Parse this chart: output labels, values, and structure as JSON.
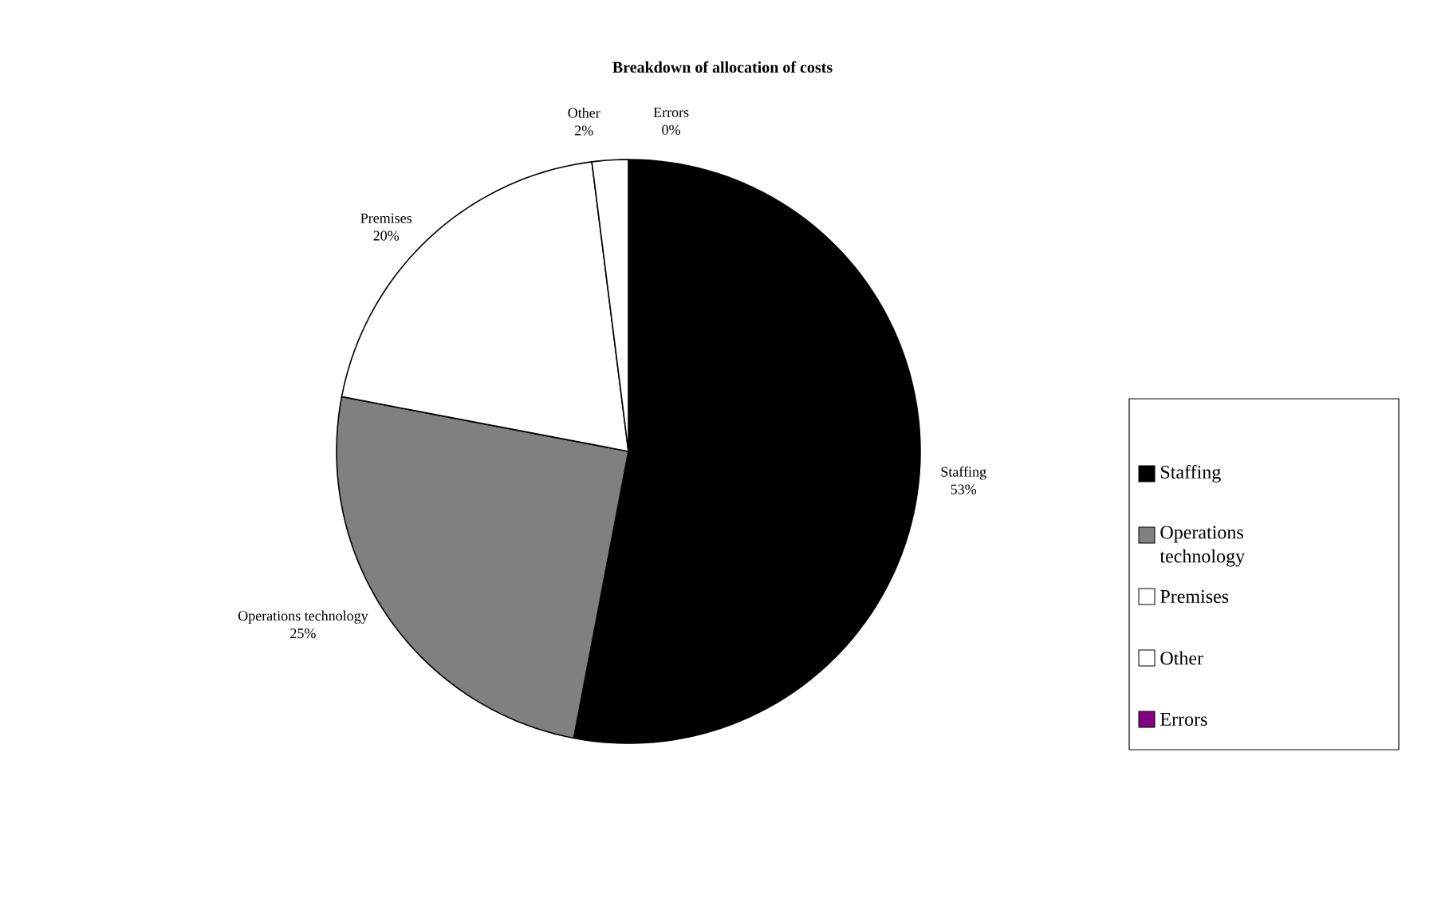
{
  "chart_data": {
    "type": "pie",
    "title": "Breakdown of allocation of costs",
    "categories": [
      "Staffing",
      "Operations technology",
      "Premises",
      "Other",
      "Errors"
    ],
    "values": [
      53,
      25,
      20,
      2,
      0
    ],
    "colors": [
      "#000000",
      "#808080",
      "#ffffff",
      "#ffffff",
      "#800080"
    ],
    "value_labels": [
      "53%",
      "25%",
      "20%",
      "2%",
      "0%"
    ],
    "legend": "right"
  }
}
